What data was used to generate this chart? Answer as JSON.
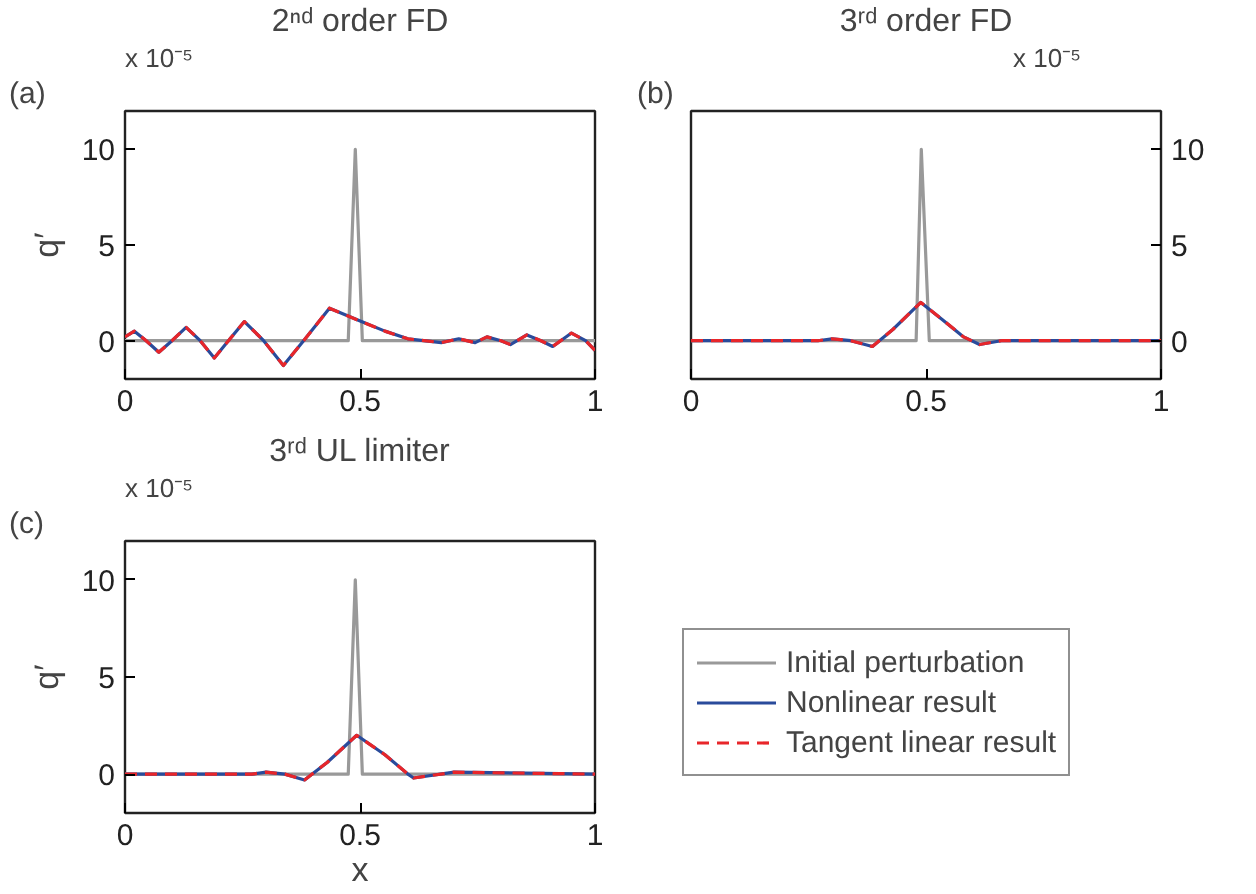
{
  "chart_data": [
    {
      "type": "line",
      "title": "2ⁿᵈ order FD",
      "ylabel": "q′",
      "annotations": [
        "(a)",
        "x 10⁻⁵"
      ],
      "xlim": [
        0,
        1
      ],
      "xticks": [
        0,
        0.5,
        1
      ],
      "ylim": [
        -2,
        12
      ],
      "yticks": [
        0,
        5,
        10
      ],
      "grid": false,
      "series": [
        {
          "color": "#999999",
          "x": [
            0,
            0.475,
            0.49,
            0.505,
            1
          ],
          "values": [
            0,
            0,
            10,
            0,
            0
          ]
        },
        {
          "color": "#2a4b9b",
          "x": [
            0,
            0.02,
            0.045,
            0.072,
            0.1,
            0.13,
            0.16,
            0.19,
            0.22,
            0.254,
            0.295,
            0.337,
            0.38,
            0.435,
            0.503,
            0.553,
            0.602,
            0.673,
            0.71,
            0.745,
            0.77,
            0.8,
            0.82,
            0.855,
            0.885,
            0.91,
            0.95,
            0.98,
            1
          ],
          "values": [
            0.2,
            0.5,
            0,
            -0.6,
            0,
            0.7,
            0,
            -0.9,
            0,
            1.0,
            0,
            -1.3,
            0,
            1.7,
            1.0,
            0.5,
            0.1,
            -0.1,
            0.1,
            -0.1,
            0.2,
            0,
            -0.2,
            0.3,
            0,
            -0.3,
            0.4,
            0,
            -0.5
          ]
        },
        {
          "color": "#e8262a",
          "line_style": "dashed",
          "x": [
            0,
            0.02,
            0.045,
            0.072,
            0.1,
            0.13,
            0.16,
            0.19,
            0.22,
            0.254,
            0.295,
            0.337,
            0.38,
            0.435,
            0.503,
            0.553,
            0.602,
            0.673,
            0.71,
            0.745,
            0.77,
            0.8,
            0.82,
            0.855,
            0.885,
            0.91,
            0.95,
            0.98,
            1
          ],
          "values": [
            0.2,
            0.5,
            0,
            -0.6,
            0,
            0.7,
            0,
            -0.9,
            0,
            1.0,
            0,
            -1.3,
            0,
            1.7,
            1.0,
            0.5,
            0.1,
            -0.1,
            0.1,
            -0.1,
            0.2,
            0,
            -0.2,
            0.3,
            0,
            -0.3,
            0.4,
            0,
            -0.5
          ]
        }
      ]
    },
    {
      "type": "line",
      "title": "3ʳᵈ order FD",
      "annotations": [
        "(b)",
        "x 10⁻⁵"
      ],
      "xlim": [
        0,
        1
      ],
      "xticks": [
        0,
        0.5,
        1
      ],
      "y2lim": [
        -2,
        12
      ],
      "y2ticks": [
        0,
        5,
        10
      ],
      "grid": false,
      "series": [
        {
          "color": "#999999",
          "axis": "y2",
          "x": [
            0,
            0.479,
            0.49,
            0.507,
            1
          ],
          "values": [
            0,
            0,
            10,
            0,
            0
          ]
        },
        {
          "color": "#2a4b9b",
          "axis": "y2",
          "x": [
            0,
            0.27,
            0.3,
            0.34,
            0.386,
            0.43,
            0.489,
            0.535,
            0.58,
            0.614,
            0.66,
            1
          ],
          "values": [
            0,
            0,
            0.1,
            0,
            -0.3,
            0.6,
            2.0,
            1.1,
            0.2,
            -0.2,
            0,
            0
          ]
        },
        {
          "color": "#e8262a",
          "axis": "y2",
          "line_style": "dashed",
          "x": [
            0,
            0.27,
            0.3,
            0.34,
            0.386,
            0.43,
            0.489,
            0.535,
            0.58,
            0.614,
            0.66,
            1
          ],
          "values": [
            0,
            0,
            0.1,
            0,
            -0.3,
            0.6,
            2.0,
            1.1,
            0.2,
            -0.2,
            0,
            0
          ]
        }
      ]
    },
    {
      "type": "line",
      "title": "3ʳᵈ UL limiter",
      "xlabel": "x",
      "ylabel": "q′",
      "annotations": [
        "(c)",
        "x 10⁻⁵"
      ],
      "xlim": [
        0,
        1
      ],
      "xticks": [
        0,
        0.5,
        1
      ],
      "ylim": [
        -2,
        12
      ],
      "yticks": [
        0,
        5,
        10
      ],
      "grid": false,
      "legend": "right",
      "series": [
        {
          "name": "Initial perturbation",
          "color": "#999999",
          "x": [
            0,
            0.475,
            0.49,
            0.505,
            1
          ],
          "values": [
            0,
            0,
            10,
            0,
            0
          ]
        },
        {
          "name": "Nonlinear result",
          "color": "#2a4b9b",
          "x": [
            0,
            0.27,
            0.3,
            0.34,
            0.382,
            0.43,
            0.493,
            0.553,
            0.602,
            0.614,
            0.7,
            1
          ],
          "values": [
            0,
            0,
            0.1,
            0,
            -0.3,
            0.6,
            2.0,
            1.0,
            0,
            -0.2,
            0.1,
            0
          ]
        },
        {
          "name": "Tangent linear result",
          "color": "#e8262a",
          "line_style": "dashed",
          "x": [
            0,
            0.27,
            0.3,
            0.34,
            0.382,
            0.43,
            0.493,
            0.553,
            0.602,
            0.614,
            0.7,
            1
          ],
          "values": [
            0,
            0,
            0.1,
            0,
            -0.3,
            0.6,
            2.0,
            1.0,
            0,
            -0.2,
            0.1,
            0
          ]
        }
      ]
    }
  ]
}
